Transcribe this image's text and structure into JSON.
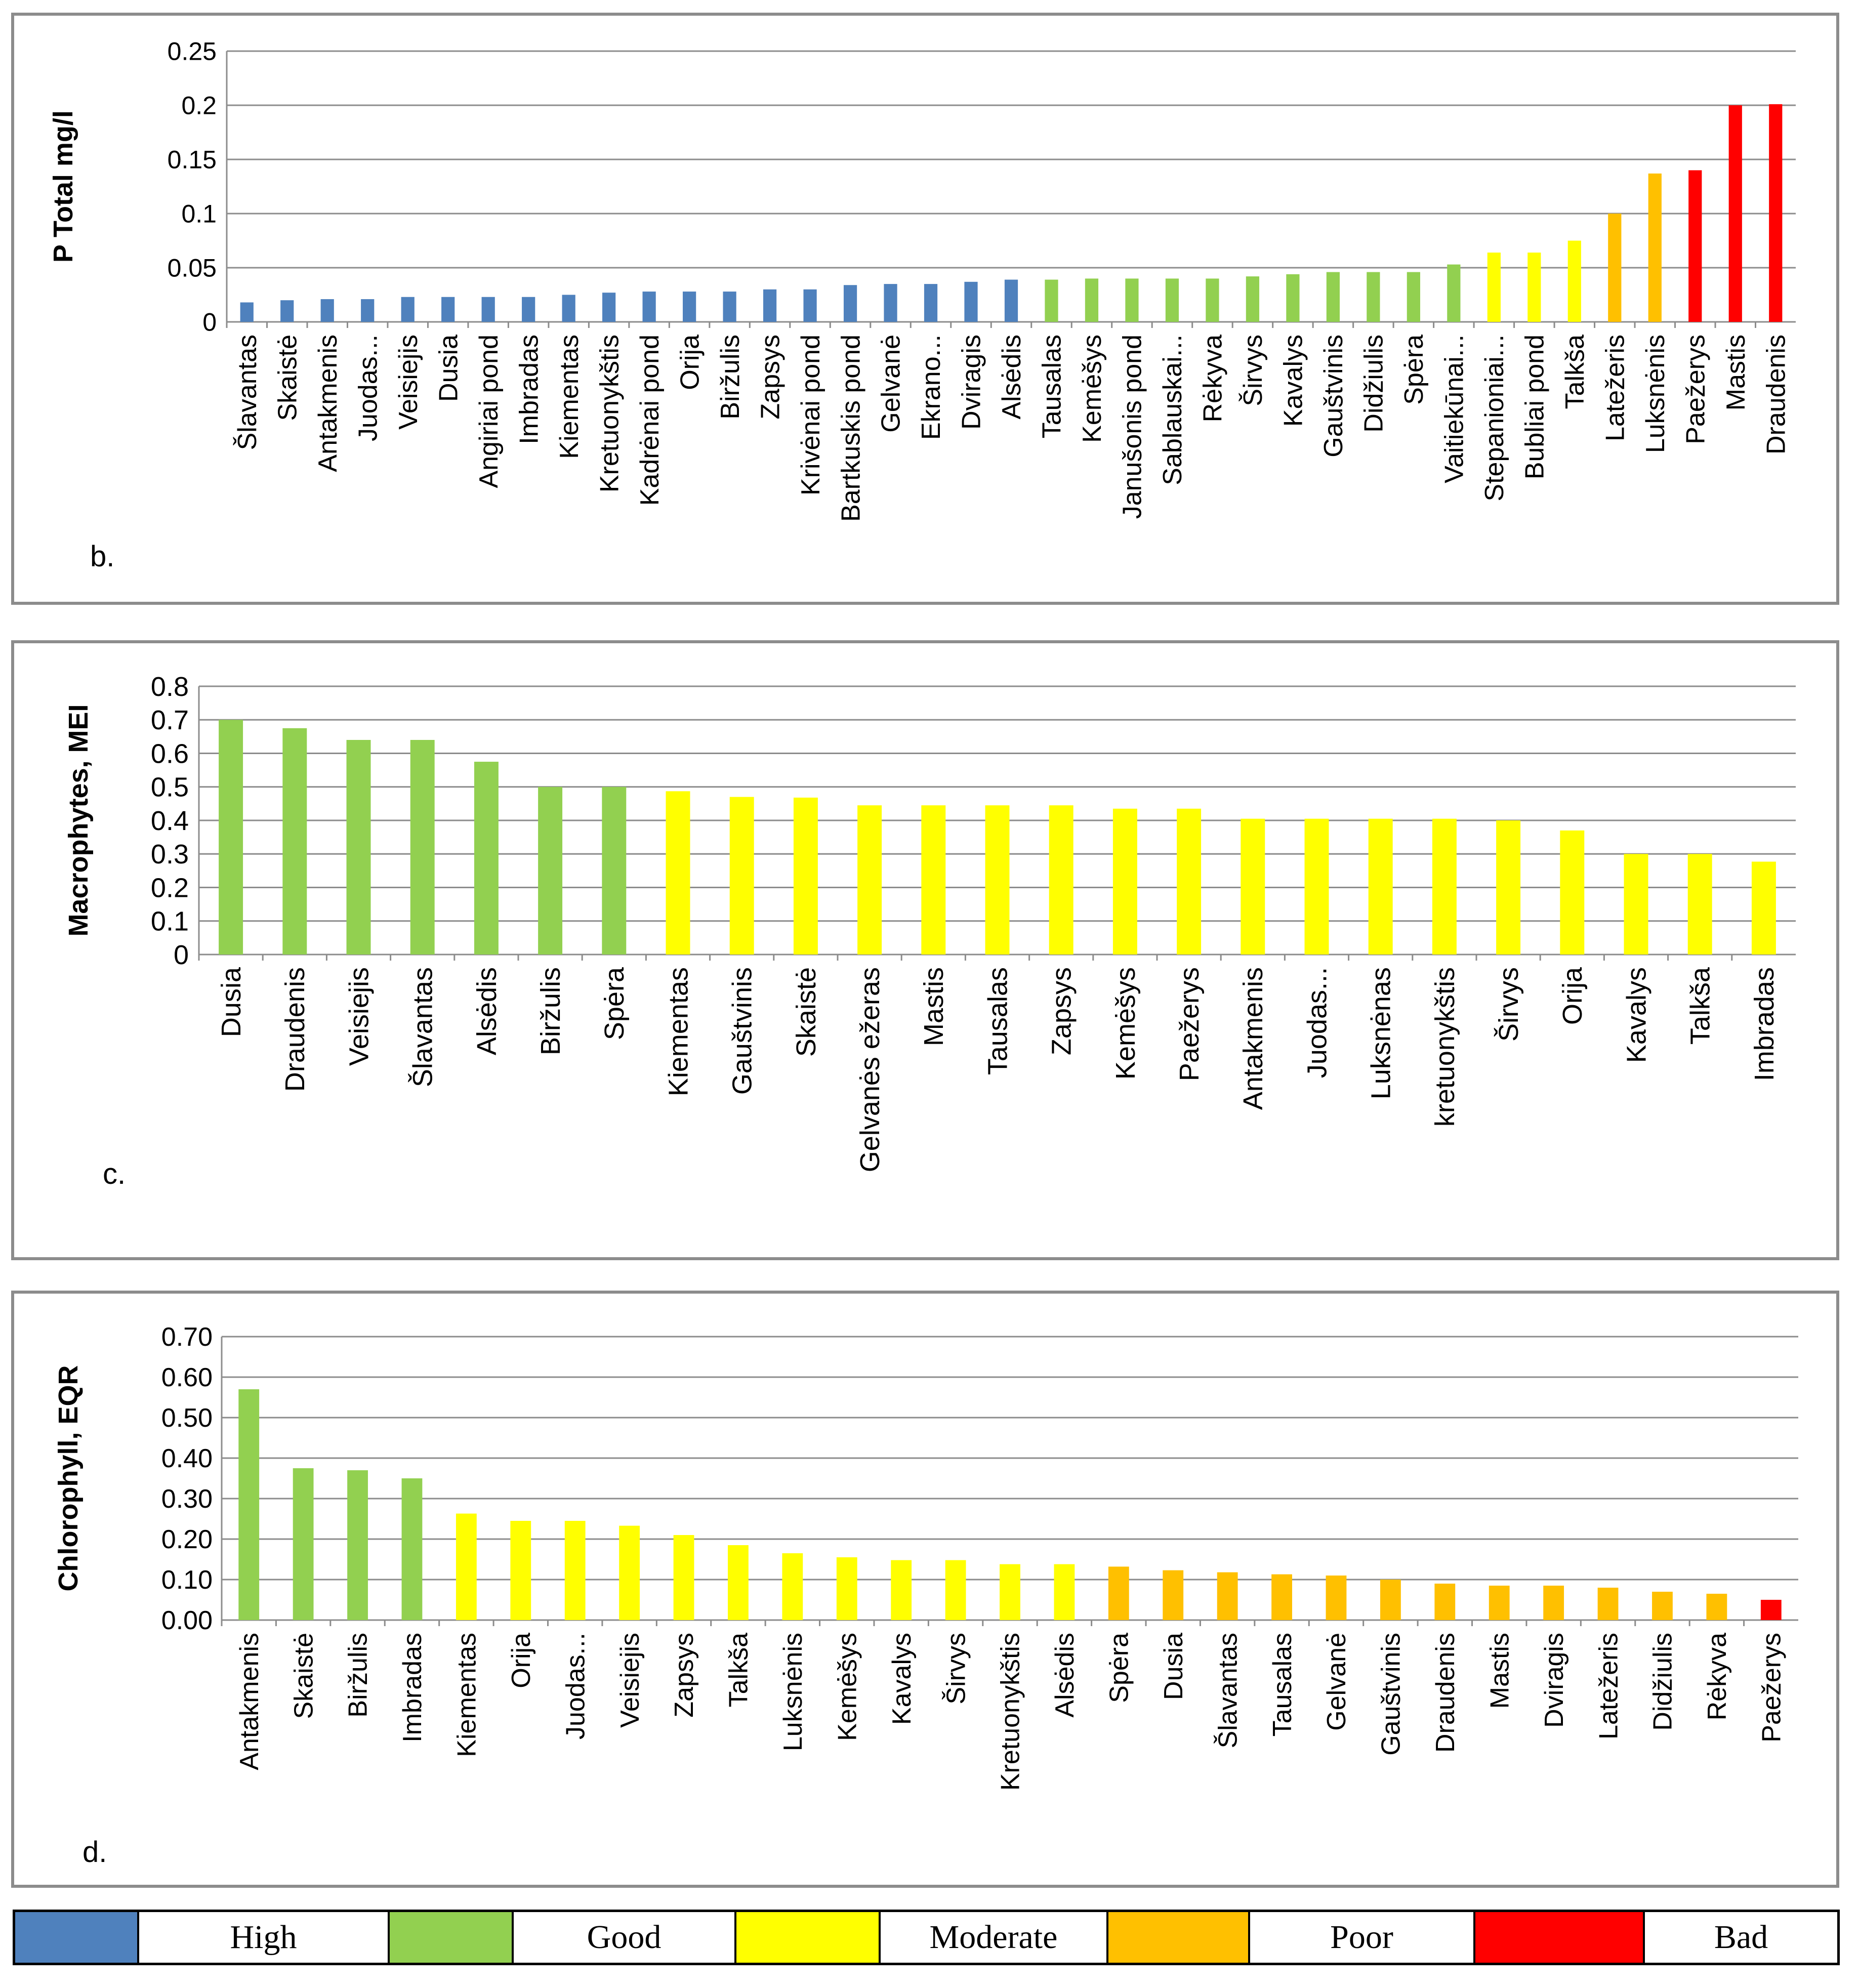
{
  "colors": {
    "High": "#4f81bd",
    "Good": "#92d050",
    "Moderate": "#ffff00",
    "Poor": "#ffc000",
    "Bad": "#ff0000"
  },
  "chart_data": [
    {
      "id": "b",
      "panel_label": "b.",
      "type": "bar",
      "title": "",
      "xlabel": "",
      "ylabel": "P Total mg/l",
      "ylim": [
        0,
        0.25
      ],
      "yticks": [
        "0",
        "0.05",
        "0.1",
        "0.15",
        "0.2",
        "0.25"
      ],
      "grid": true,
      "categories": [
        "Šlavantas",
        "Skaistė",
        "Antakmenis",
        "Juodas...",
        "Veisiejis",
        "Dusia",
        "Angiriai pond",
        "Imbradas",
        "Kiementas",
        "Kretuonykštis",
        "Kadrėnai pond",
        "Orija",
        "Biržulis",
        "Zapsys",
        "Krivėnai pond",
        "Bartkuskis pond",
        "Gelvanė",
        "Ekrano...",
        "Dviragis",
        "Alsėdis",
        "Tausalas",
        "Kemėšys",
        "Janušonis pond",
        "Sablauskai...",
        "Rėkyva",
        "Širvys",
        "Kavalys",
        "Gauštvinis",
        "Didžiulis",
        "Spėra",
        "Vaitiekūnai...",
        "Stepanioniai...",
        "Bubliai pond",
        "Talkša",
        "Latežeris",
        "Luksnėnis",
        "Paežerys",
        "Mastis",
        "Draudenis"
      ],
      "values": [
        0.018,
        0.02,
        0.021,
        0.021,
        0.023,
        0.023,
        0.023,
        0.023,
        0.025,
        0.027,
        0.028,
        0.028,
        0.028,
        0.03,
        0.03,
        0.034,
        0.035,
        0.035,
        0.037,
        0.039,
        0.039,
        0.04,
        0.04,
        0.04,
        0.04,
        0.042,
        0.044,
        0.046,
        0.046,
        0.046,
        0.053,
        0.064,
        0.064,
        0.075,
        0.1,
        0.137,
        0.14,
        0.2,
        0.201
      ],
      "classes": [
        "High",
        "High",
        "High",
        "High",
        "High",
        "High",
        "High",
        "High",
        "High",
        "High",
        "High",
        "High",
        "High",
        "High",
        "High",
        "High",
        "High",
        "High",
        "High",
        "High",
        "Good",
        "Good",
        "Good",
        "Good",
        "Good",
        "Good",
        "Good",
        "Good",
        "Good",
        "Good",
        "Good",
        "Moderate",
        "Moderate",
        "Moderate",
        "Poor",
        "Poor",
        "Bad",
        "Bad",
        "Bad"
      ]
    },
    {
      "id": "c",
      "panel_label": "c.",
      "type": "bar",
      "title": "",
      "xlabel": "",
      "ylabel": "Macrophytes, MEI",
      "ylim": [
        0,
        0.8
      ],
      "yticks": [
        "0",
        "0.1",
        "0.2",
        "0.3",
        "0.4",
        "0.5",
        "0.6",
        "0.7",
        "0.8"
      ],
      "grid": true,
      "categories": [
        "Dusia",
        "Draudenis",
        "Veisiejis",
        "Šlavantas",
        "Alsėdis",
        "Biržulis",
        "Spėra",
        "Kiementas",
        "Gauštvinis",
        "Skaistė",
        "Gelvanės ežeras",
        "Mastis",
        "Tausalas",
        "Zapsys",
        "Kemėšys",
        "Paežerys",
        "Antakmenis",
        "Juodas...",
        "Luksnėnas",
        "kretuonykštis",
        "Širvys",
        "Orija",
        "Kavalys",
        "Talkša",
        "Imbradas"
      ],
      "values": [
        0.7,
        0.675,
        0.64,
        0.64,
        0.575,
        0.5,
        0.5,
        0.487,
        0.47,
        0.468,
        0.445,
        0.445,
        0.445,
        0.445,
        0.435,
        0.435,
        0.405,
        0.405,
        0.405,
        0.405,
        0.4,
        0.37,
        0.3,
        0.3,
        0.277
      ],
      "classes": [
        "Good",
        "Good",
        "Good",
        "Good",
        "Good",
        "Good",
        "Good",
        "Moderate",
        "Moderate",
        "Moderate",
        "Moderate",
        "Moderate",
        "Moderate",
        "Moderate",
        "Moderate",
        "Moderate",
        "Moderate",
        "Moderate",
        "Moderate",
        "Moderate",
        "Moderate",
        "Moderate",
        "Moderate",
        "Moderate",
        "Moderate"
      ]
    },
    {
      "id": "d",
      "panel_label": "d.",
      "type": "bar",
      "title": "",
      "xlabel": "",
      "ylabel": "Chlorophyll, EQR",
      "ylim": [
        0,
        0.7
      ],
      "yticks": [
        "0.00",
        "0.10",
        "0.20",
        "0.30",
        "0.40",
        "0.50",
        "0.60",
        "0.70"
      ],
      "grid": true,
      "categories": [
        "Antakmenis",
        "Skaistė",
        "Biržulis",
        "Imbradas",
        "Kiementas",
        "Orija",
        "Juodas...",
        "Veisiejis",
        "Zapsys",
        "Talkša",
        "Luksnėnis",
        "Kemėšys",
        "Kavalys",
        "Širvys",
        "Kretuonykštis",
        "Alsėdis",
        "Spėra",
        "Dusia",
        "Šlavantas",
        "Tausalas",
        "Gelvanė",
        "Gauštvinis",
        "Draudenis",
        "Mastis",
        "Dviragis",
        "Latežeris",
        "Didžiulis",
        "Rėkyva",
        "Paežerys"
      ],
      "values": [
        0.57,
        0.375,
        0.37,
        0.35,
        0.263,
        0.245,
        0.245,
        0.233,
        0.21,
        0.185,
        0.165,
        0.155,
        0.148,
        0.148,
        0.138,
        0.138,
        0.132,
        0.123,
        0.118,
        0.113,
        0.11,
        0.1,
        0.09,
        0.085,
        0.085,
        0.08,
        0.07,
        0.065,
        0.05
      ],
      "classes": [
        "Good",
        "Good",
        "Good",
        "Good",
        "Moderate",
        "Moderate",
        "Moderate",
        "Moderate",
        "Moderate",
        "Moderate",
        "Moderate",
        "Moderate",
        "Moderate",
        "Moderate",
        "Moderate",
        "Moderate",
        "Poor",
        "Poor",
        "Poor",
        "Poor",
        "Poor",
        "Poor",
        "Poor",
        "Poor",
        "Poor",
        "Poor",
        "Poor",
        "Poor",
        "Bad"
      ]
    }
  ],
  "legend": {
    "items": [
      "High",
      "Good",
      "Moderate",
      "Poor",
      "Bad"
    ]
  }
}
